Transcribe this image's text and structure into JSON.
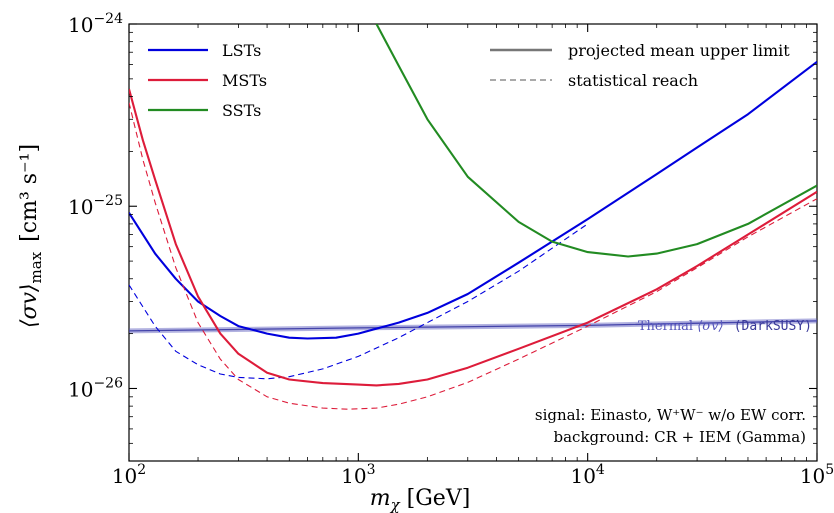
{
  "chart_data": {
    "type": "line",
    "xlabel": "m_χ [GeV]",
    "ylabel": "⟨σv⟩_max [cm³ s⁻¹]",
    "xscale": "log",
    "yscale": "log",
    "xlim": [
      100,
      100000
    ],
    "ylim": [
      4e-27,
      1e-24
    ],
    "x_ticks": [
      {
        "value": 100,
        "base": "10",
        "exp": "2"
      },
      {
        "value": 1000,
        "base": "10",
        "exp": "3"
      },
      {
        "value": 10000,
        "base": "10",
        "exp": "4"
      },
      {
        "value": 100000,
        "base": "10",
        "exp": "5"
      }
    ],
    "y_ticks": [
      {
        "value": 1e-26,
        "base": "10",
        "exp": "−26"
      },
      {
        "value": 1e-25,
        "base": "10",
        "exp": "−25"
      },
      {
        "value": 1e-24,
        "base": "10",
        "exp": "−24"
      }
    ],
    "legend_placement": "top",
    "series": [
      {
        "name": "LSTs",
        "color": "#0000dd",
        "style": "solid",
        "x": [
          100,
          130,
          160,
          200,
          250,
          300,
          400,
          500,
          600,
          800,
          1000,
          1500,
          2000,
          3000,
          5000,
          10000,
          20000,
          30000,
          50000,
          100000
        ],
        "y": [
          9.2e-26,
          5.5e-26,
          4e-26,
          3e-26,
          2.5e-26,
          2.2e-26,
          2e-26,
          1.9e-26,
          1.88e-26,
          1.9e-26,
          2e-26,
          2.3e-26,
          2.6e-26,
          3.3e-26,
          4.9e-26,
          8.5e-26,
          1.5e-25,
          2.1e-25,
          3.2e-25,
          6.2e-25
        ]
      },
      {
        "name": "LSTs",
        "color": "#0000dd",
        "style": "dashed",
        "x": [
          100,
          130,
          160,
          200,
          250,
          300,
          400,
          500,
          700,
          1000,
          1500,
          2000,
          3000,
          5000,
          10000
        ],
        "y": [
          3.7e-26,
          2.2e-26,
          1.6e-26,
          1.35e-26,
          1.2e-26,
          1.15e-26,
          1.13e-26,
          1.16e-26,
          1.28e-26,
          1.5e-26,
          1.9e-26,
          2.3e-26,
          3e-26,
          4.4e-26,
          8e-26
        ]
      },
      {
        "name": "MSTs",
        "color": "#dd1c3a",
        "style": "solid",
        "x": [
          100,
          115,
          130,
          160,
          200,
          250,
          300,
          400,
          500,
          700,
          1000,
          1200,
          1500,
          2000,
          3000,
          5000,
          10000,
          20000,
          30000,
          50000,
          100000
        ],
        "y": [
          4.4e-25,
          2.3e-25,
          1.4e-25,
          6.2e-26,
          3.2e-26,
          2e-26,
          1.55e-26,
          1.22e-26,
          1.12e-26,
          1.07e-26,
          1.05e-26,
          1.04e-26,
          1.06e-26,
          1.12e-26,
          1.3e-26,
          1.65e-26,
          2.3e-26,
          3.5e-26,
          4.7e-26,
          7e-26,
          1.2e-25
        ]
      },
      {
        "name": "MSTs",
        "color": "#dd1c3a",
        "style": "dashed",
        "x": [
          100,
          115,
          130,
          160,
          200,
          250,
          300,
          400,
          500,
          700,
          900,
          1200,
          1500,
          2000,
          3000,
          5000,
          10000,
          20000,
          30000,
          50000,
          100000
        ],
        "y": [
          3.7e-25,
          1.8e-25,
          1.05e-25,
          4.6e-26,
          2.3e-26,
          1.45e-26,
          1.12e-26,
          9e-27,
          8.3e-27,
          7.8e-27,
          7.7e-27,
          7.8e-27,
          8.2e-27,
          9e-27,
          1.08e-26,
          1.45e-26,
          2.2e-26,
          3.4e-26,
          4.6e-26,
          6.8e-26,
          1.1e-25
        ]
      },
      {
        "name": "SSTs",
        "color": "#228b22",
        "style": "solid",
        "x": [
          1200,
          1500,
          2000,
          3000,
          5000,
          7000,
          10000,
          15000,
          20000,
          30000,
          50000,
          100000
        ],
        "y": [
          1e-24,
          5.9e-25,
          3e-25,
          1.45e-25,
          8.2e-26,
          6.4e-26,
          5.6e-26,
          5.3e-26,
          5.5e-26,
          6.2e-26,
          8e-26,
          1.3e-25
        ]
      }
    ],
    "thermal_band": {
      "color": "#5555bb",
      "x": [
        100,
        1000,
        10000,
        100000
      ],
      "y": [
        2.07e-26,
        2.15e-26,
        2.22e-26,
        2.35e-26
      ]
    },
    "annotations": {
      "thermal_prefix": "Thermal ",
      "thermal_sv": "⟨σv⟩",
      "thermal_tool": "(DarkSUSY)",
      "signal_line": "signal: Einasto, W⁺W⁻ w/o EW corr.",
      "background_line": "background: CR + IEM (Gamma)"
    }
  },
  "legend": {
    "lsts": "LSTs",
    "msts": "MSTs",
    "ssts": "SSTs",
    "solid_style": "projected mean upper limit",
    "dashed_style": "statistical reach"
  },
  "axes": {
    "x_label_main": "m",
    "x_label_sub": "χ",
    "x_label_unit": " [GeV]",
    "y_label_main": "⟨σv⟩",
    "y_label_sub": "max",
    "y_label_unit": "[cm³ s⁻¹]"
  }
}
